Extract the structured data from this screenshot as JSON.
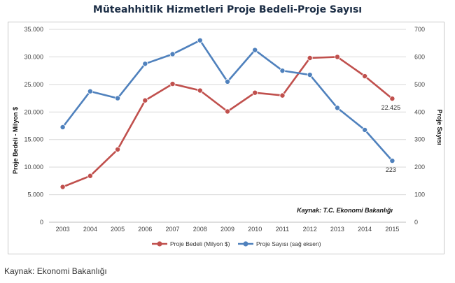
{
  "title": "Müteahhitlik Hizmetleri Proje Bedeli-Proje Sayısı",
  "footer": "Kaynak: Ekonomi Bakanlığı",
  "chart_data": {
    "type": "line",
    "categories": [
      "2003",
      "2004",
      "2005",
      "2006",
      "2007",
      "2008",
      "2009",
      "2010",
      "2011",
      "2012",
      "2013",
      "2014",
      "2015"
    ],
    "series": [
      {
        "name": "Proje Bedeli (Milyon $)",
        "axis": "left",
        "color": "#c0504d",
        "values": [
          6400,
          8400,
          13200,
          22100,
          25100,
          23900,
          20100,
          23500,
          23000,
          29800,
          30000,
          26500,
          22425
        ]
      },
      {
        "name": "Proje Sayısı (sağ eksen)",
        "axis": "right",
        "color": "#4f81bd",
        "values": [
          345,
          475,
          450,
          575,
          610,
          660,
          510,
          625,
          550,
          535,
          415,
          335,
          223
        ]
      }
    ],
    "y_left": {
      "label": "Proje Bedeli - Milyon $",
      "range": [
        0,
        35000
      ],
      "ticks": [
        0,
        5000,
        10000,
        15000,
        20000,
        25000,
        30000,
        35000
      ],
      "tick_labels": [
        "0",
        "5.000",
        "10.000",
        "15.000",
        "20.000",
        "25.000",
        "30.000",
        "35.000"
      ]
    },
    "y_right": {
      "label": "Proje Sayısı",
      "range": [
        0,
        700
      ],
      "ticks": [
        0,
        100,
        200,
        300,
        400,
        500,
        600,
        700
      ],
      "tick_labels": [
        "0",
        "100",
        "200",
        "300",
        "400",
        "500",
        "600",
        "700"
      ]
    },
    "annotations": [
      {
        "series": 0,
        "index": 12,
        "text": "22.425"
      },
      {
        "series": 1,
        "index": 12,
        "text": "223"
      }
    ],
    "source_note": "Kaynak: T.C. Ekonomi Bakanlığı",
    "grid": true,
    "legend_position": "bottom"
  }
}
